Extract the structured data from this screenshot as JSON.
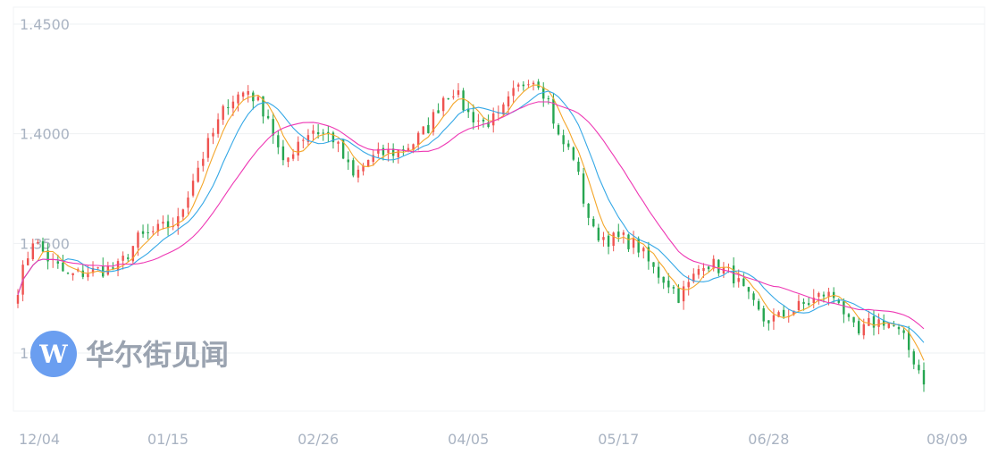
{
  "brand": {
    "name": "华尔街见闻",
    "logo_letter": "W",
    "logo_color": "#6a9ef0"
  },
  "colors": {
    "up": "#ef5350",
    "down": "#26a651",
    "ma_short": "#f4a62a",
    "ma_mid": "#35a8e6",
    "ma_long": "#ee38b4",
    "grid": "#eef0f3",
    "axis_text": "#a9b3c2"
  },
  "chart_data": {
    "type": "ohlc",
    "ylim": [
      1.2725,
      1.4525
    ],
    "yticks": [
      {
        "value": 1.45,
        "label": "1.4500"
      },
      {
        "value": 1.4,
        "label": "1.4000"
      },
      {
        "value": 1.35,
        "label": "1.3500"
      },
      {
        "value": 1.3,
        "label": "1.3000"
      }
    ],
    "xticks": [
      {
        "index": 0,
        "label": "12/04"
      },
      {
        "index": 30,
        "label": "01/15"
      },
      {
        "index": 60,
        "label": "02/26"
      },
      {
        "index": 90,
        "label": "04/05"
      },
      {
        "index": 120,
        "label": "05/17"
      },
      {
        "index": 150,
        "label": "06/28"
      },
      {
        "index": 180,
        "label": "08/09"
      }
    ],
    "grid": "horizontal",
    "anchors": [
      [
        0,
        1.33
      ],
      [
        3,
        1.352
      ],
      [
        6,
        1.343
      ],
      [
        10,
        1.335
      ],
      [
        14,
        1.337
      ],
      [
        20,
        1.339
      ],
      [
        24,
        1.352
      ],
      [
        28,
        1.356
      ],
      [
        32,
        1.36
      ],
      [
        35,
        1.38
      ],
      [
        38,
        1.395
      ],
      [
        42,
        1.415
      ],
      [
        46,
        1.42
      ],
      [
        50,
        1.408
      ],
      [
        53,
        1.385
      ],
      [
        56,
        1.397
      ],
      [
        59,
        1.402
      ],
      [
        63,
        1.398
      ],
      [
        67,
        1.38
      ],
      [
        70,
        1.388
      ],
      [
        73,
        1.391
      ],
      [
        76,
        1.392
      ],
      [
        79,
        1.396
      ],
      [
        82,
        1.403
      ],
      [
        85,
        1.417
      ],
      [
        87,
        1.42
      ],
      [
        90,
        1.409
      ],
      [
        93,
        1.405
      ],
      [
        96,
        1.407
      ],
      [
        99,
        1.418
      ],
      [
        102,
        1.426
      ],
      [
        104,
        1.424
      ],
      [
        106,
        1.415
      ],
      [
        108,
        1.398
      ],
      [
        111,
        1.39
      ],
      [
        113,
        1.37
      ],
      [
        115,
        1.355
      ],
      [
        118,
        1.352
      ],
      [
        121,
        1.352
      ],
      [
        124,
        1.348
      ],
      [
        127,
        1.338
      ],
      [
        130,
        1.332
      ],
      [
        132,
        1.326
      ],
      [
        134,
        1.331
      ],
      [
        137,
        1.342
      ],
      [
        140,
        1.339
      ],
      [
        143,
        1.335
      ],
      [
        145,
        1.328
      ],
      [
        147,
        1.321
      ],
      [
        149,
        1.315
      ],
      [
        152,
        1.316
      ],
      [
        155,
        1.32
      ],
      [
        158,
        1.323
      ],
      [
        161,
        1.327
      ],
      [
        164,
        1.325
      ],
      [
        166,
        1.313
      ],
      [
        168,
        1.308
      ],
      [
        170,
        1.313
      ],
      [
        173,
        1.315
      ],
      [
        175,
        1.312
      ],
      [
        177,
        1.306
      ],
      [
        179,
        1.297
      ],
      [
        181,
        1.288
      ]
    ]
  }
}
